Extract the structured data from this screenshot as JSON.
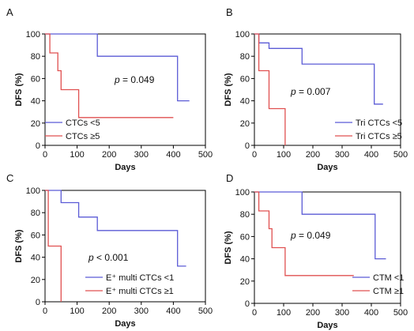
{
  "chart_data": [
    {
      "panel": "A",
      "type": "line",
      "xlabel": "Days",
      "ylabel": "DFS (%)",
      "xlim": [
        0,
        500
      ],
      "ylim": [
        0,
        100
      ],
      "xticks": [
        "0",
        "100",
        "200",
        "300",
        "400",
        "500"
      ],
      "yticks": [
        "0",
        "20",
        "40",
        "60",
        "80",
        "100"
      ],
      "annotation": {
        "p": "p",
        "rest": " = 0.049"
      },
      "legend_position": "bottom-left",
      "series": [
        {
          "name": "CTCs <5",
          "color": "#5b5bd6",
          "x": [
            0,
            163,
            163,
            413,
            413,
            450
          ],
          "y": [
            100,
            100,
            80,
            80,
            40,
            40
          ]
        },
        {
          "name": "CTCs ≥5",
          "color": "#e05050",
          "x": [
            0,
            15,
            15,
            40,
            40,
            50,
            50,
            55,
            55,
            105,
            105,
            400
          ],
          "y": [
            100,
            100,
            83,
            83,
            67,
            67,
            50,
            50,
            50,
            50,
            25,
            25
          ]
        }
      ]
    },
    {
      "panel": "B",
      "type": "line",
      "xlabel": "Days",
      "ylabel": "DFS (%)",
      "xlim": [
        0,
        500
      ],
      "ylim": [
        0,
        100
      ],
      "xticks": [
        "0",
        "100",
        "200",
        "300",
        "400",
        "500"
      ],
      "yticks": [
        "0",
        "20",
        "40",
        "60",
        "80",
        "100"
      ],
      "annotation": {
        "p": "p",
        "rest": " = 0.007"
      },
      "legend_position": "bottom-right",
      "series": [
        {
          "name": "Tri CTCs <5",
          "color": "#5b5bd6",
          "x": [
            0,
            15,
            15,
            50,
            50,
            163,
            163,
            410,
            410,
            440
          ],
          "y": [
            100,
            100,
            92,
            92,
            87,
            87,
            73,
            73,
            37,
            37
          ]
        },
        {
          "name": "Tri CTCs ≥5",
          "color": "#e05050",
          "x": [
            0,
            15,
            15,
            50,
            50,
            90,
            90,
            105,
            105
          ],
          "y": [
            100,
            100,
            67,
            67,
            33,
            33,
            33,
            33,
            0
          ]
        }
      ]
    },
    {
      "panel": "C",
      "type": "line",
      "xlabel": "Days",
      "ylabel": "DFS (%)",
      "xlim": [
        0,
        500
      ],
      "ylim": [
        0,
        100
      ],
      "xticks": [
        "0",
        "100",
        "200",
        "300",
        "400",
        "500"
      ],
      "yticks": [
        "0",
        "20",
        "40",
        "60",
        "80",
        "100"
      ],
      "annotation": {
        "p": "p",
        "rest": " < 0.001"
      },
      "legend_position": "bottom-right",
      "series": [
        {
          "name": "E⁺ multi CTCs <1",
          "color": "#5b5bd6",
          "x": [
            0,
            50,
            50,
            105,
            105,
            163,
            163,
            413,
            413,
            440
          ],
          "y": [
            100,
            100,
            89,
            89,
            76,
            76,
            64,
            64,
            32,
            32
          ]
        },
        {
          "name": "E⁺ multi CTCs ≥1",
          "color": "#e05050",
          "x": [
            0,
            10,
            10,
            50,
            50
          ],
          "y": [
            100,
            100,
            50,
            50,
            0
          ]
        }
      ]
    },
    {
      "panel": "D",
      "type": "line",
      "xlabel": "Days",
      "ylabel": "DFS (%)",
      "xlim": [
        0,
        500
      ],
      "ylim": [
        0,
        100
      ],
      "xticks": [
        "0",
        "100",
        "200",
        "300",
        "400",
        "500"
      ],
      "yticks": [
        "0",
        "20",
        "40",
        "60",
        "80",
        "100"
      ],
      "annotation": {
        "p": "p",
        "rest": " = 0.049"
      },
      "legend_position": "bottom-right",
      "series": [
        {
          "name": "CTM <1",
          "color": "#5b5bd6",
          "x": [
            0,
            163,
            163,
            413,
            413,
            450
          ],
          "y": [
            100,
            100,
            80,
            80,
            40,
            40
          ]
        },
        {
          "name": "CTM ≥1",
          "color": "#e05050",
          "x": [
            0,
            15,
            15,
            50,
            50,
            60,
            60,
            105,
            105,
            340
          ],
          "y": [
            100,
            100,
            83,
            83,
            67,
            67,
            50,
            50,
            25,
            25
          ]
        }
      ]
    }
  ]
}
